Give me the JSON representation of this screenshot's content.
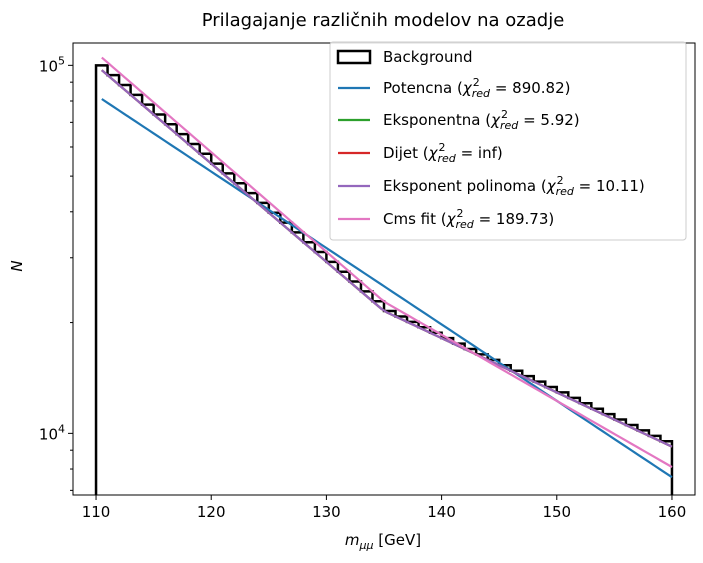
{
  "chart_data": {
    "type": "line",
    "title": "Prilagajanje različnih modelov na ozadje",
    "xlabel": {
      "base": "m",
      "sub": "μμ",
      "unit": " [GeV]"
    },
    "ylabel": "N",
    "yscale": "log",
    "xlim": [
      108,
      162
    ],
    "ylim": [
      6800,
      115000
    ],
    "x_ticks": [
      110,
      120,
      130,
      140,
      150,
      160
    ],
    "x_tick_labels": [
      "110",
      "120",
      "130",
      "140",
      "150",
      "160"
    ],
    "y_ticks": [
      10000,
      100000
    ],
    "y_tick_labels": [
      {
        "base": "10",
        "exp": "4"
      },
      {
        "base": "10",
        "exp": "5"
      }
    ],
    "grid": false,
    "legend_position": "top-right",
    "histogram": {
      "name": "Background",
      "bin_width": 1,
      "x_start": 110,
      "x_end": 160,
      "N_start": 100000,
      "N_mid_x": 135,
      "N_mid": 21500,
      "N_end": 9200
    },
    "series": [
      {
        "name": "Potencna",
        "chi2red": "890.82",
        "color": "#1f77b4",
        "x": [
          110.5,
          160
        ],
        "y": [
          81000,
          7600
        ]
      },
      {
        "name": "Eksponentna",
        "chi2red": "5.92",
        "color": "#2ca02c",
        "x": [
          110.5,
          135,
          160
        ],
        "y": [
          97000,
          21500,
          9200
        ]
      },
      {
        "name": "Dijet",
        "chi2red": "inf",
        "color": "#d62728",
        "x": [
          110.5,
          135,
          160
        ],
        "y": [
          97000,
          21500,
          9200
        ]
      },
      {
        "name": "Eksponent polinoma",
        "chi2red": "10.11",
        "color": "#9467bd",
        "x": [
          110.5,
          135,
          160
        ],
        "y": [
          97000,
          21500,
          9200
        ]
      },
      {
        "name": "Cms fit",
        "chi2red": "189.73",
        "color": "#e377c2",
        "x": [
          110.5,
          135,
          160
        ],
        "y": [
          105000,
          22800,
          8100
        ]
      }
    ]
  }
}
